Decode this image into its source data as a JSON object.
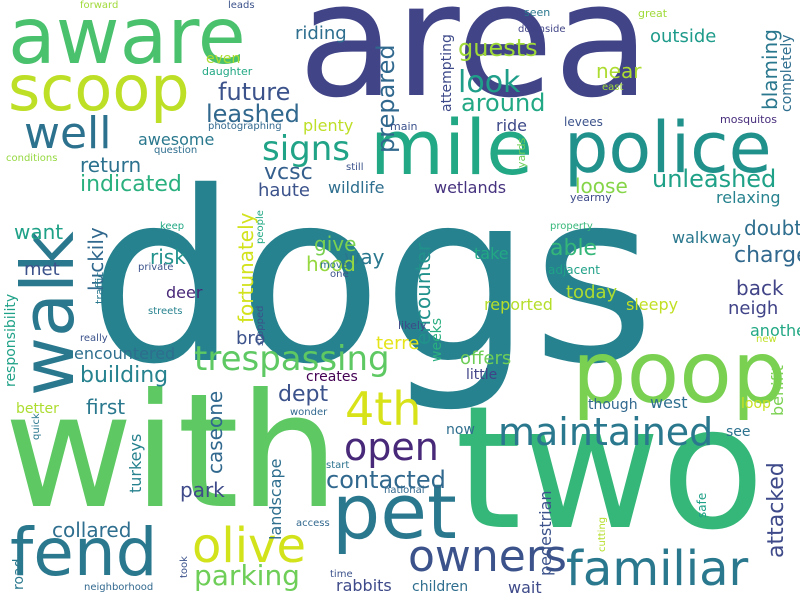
{
  "word_cloud": {
    "background": "#ffffff",
    "words": [
      {
        "text": "dogs",
        "color": "#26828e"
      },
      {
        "text": "area",
        "color": "#414487"
      },
      {
        "text": "two",
        "color": "#35b779"
      },
      {
        "text": "with",
        "color": "#5ec962"
      },
      {
        "text": "aware",
        "color": "#4ac16d"
      },
      {
        "text": "poop",
        "color": "#7ad151"
      },
      {
        "text": "police",
        "color": "#21918c"
      },
      {
        "text": "mile",
        "color": "#22a884"
      },
      {
        "text": "pet",
        "color": "#2a788e"
      },
      {
        "text": "scoop",
        "color": "#bddf26"
      },
      {
        "text": "walk",
        "color": "#2a788e"
      },
      {
        "text": "fend",
        "color": "#2a788e"
      },
      {
        "text": "familiar",
        "color": "#2a788e"
      },
      {
        "text": "owners",
        "color": "#3b528b"
      },
      {
        "text": "olive",
        "color": "#d2e21b"
      },
      {
        "text": "maintained",
        "color": "#2a788e"
      },
      {
        "text": "4th",
        "color": "#d8e219"
      },
      {
        "text": "well",
        "color": "#2c728e"
      },
      {
        "text": "open",
        "color": "#482878"
      },
      {
        "text": "trespassing",
        "color": "#5ec962"
      },
      {
        "text": "parking",
        "color": "#6ece58"
      },
      {
        "text": "signs",
        "color": "#20a386"
      },
      {
        "text": "look",
        "color": "#1f9e89"
      },
      {
        "text": "unleashed",
        "color": "#1fa187"
      },
      {
        "text": "contacted",
        "color": "#31688e"
      },
      {
        "text": "future",
        "color": "#3b528b"
      },
      {
        "text": "leashed",
        "color": "#31688e"
      },
      {
        "text": "prepared",
        "color": "#31688e"
      },
      {
        "text": "guests",
        "color": "#a0da39"
      },
      {
        "text": "around",
        "color": "#22a884"
      },
      {
        "text": "near",
        "color": "#addc30"
      },
      {
        "text": "outside",
        "color": "#1e9b8a"
      },
      {
        "text": "riding",
        "color": "#2e6e8e"
      },
      {
        "text": "blaming",
        "color": "#2a788e"
      },
      {
        "text": "indicated",
        "color": "#2ab07f"
      },
      {
        "text": "return",
        "color": "#2c728e"
      },
      {
        "text": "awesome",
        "color": "#2a788e"
      },
      {
        "text": "plenty",
        "color": "#bddf26"
      },
      {
        "text": "vcsc",
        "color": "#35608d"
      },
      {
        "text": "haute",
        "color": "#3b528b"
      },
      {
        "text": "wildlife",
        "color": "#2e6e8e"
      },
      {
        "text": "wetlands",
        "color": "#46327e"
      },
      {
        "text": "loose",
        "color": "#86d549"
      },
      {
        "text": "relaxing",
        "color": "#26828e"
      },
      {
        "text": "doubt",
        "color": "#2e6e8e"
      },
      {
        "text": "charged",
        "color": "#31688e"
      },
      {
        "text": "walkway",
        "color": "#2a788e"
      },
      {
        "text": "fortunately",
        "color": "#d2e21b"
      },
      {
        "text": "encounter",
        "color": "#21918c"
      },
      {
        "text": "luckily",
        "color": "#31688e"
      },
      {
        "text": "want",
        "color": "#1fa187"
      },
      {
        "text": "give",
        "color": "#7ad151"
      },
      {
        "text": "way",
        "color": "#2a788e"
      },
      {
        "text": "risk",
        "color": "#21918c"
      },
      {
        "text": "met",
        "color": "#3b528b"
      },
      {
        "text": "hood",
        "color": "#95d840"
      },
      {
        "text": "take",
        "color": "#22a884"
      },
      {
        "text": "able",
        "color": "#35b779"
      },
      {
        "text": "today",
        "color": "#addc30"
      },
      {
        "text": "back",
        "color": "#414487"
      },
      {
        "text": "neigh",
        "color": "#404387"
      },
      {
        "text": "another",
        "color": "#22a884"
      },
      {
        "text": "benifit",
        "color": "#7ad151"
      },
      {
        "text": "completely",
        "color": "#2e6e8e"
      },
      {
        "text": "loop",
        "color": "#c8e020"
      },
      {
        "text": "attacked",
        "color": "#3e4a89"
      },
      {
        "text": "deer",
        "color": "#482878"
      },
      {
        "text": "bro",
        "color": "#3b528b"
      },
      {
        "text": "caseone",
        "color": "#31688e"
      },
      {
        "text": "dept",
        "color": "#3b528b"
      },
      {
        "text": "building",
        "color": "#26828e"
      },
      {
        "text": "encountered",
        "color": "#2e6e8e"
      },
      {
        "text": "first",
        "color": "#2a788e"
      },
      {
        "text": "park",
        "color": "#3e4a89"
      },
      {
        "text": "collared",
        "color": "#2e6e8e"
      },
      {
        "text": "landscape",
        "color": "#2e6e8e"
      },
      {
        "text": "turkeys",
        "color": "#26828e"
      },
      {
        "text": "reported",
        "color": "#b5de2b"
      },
      {
        "text": "sleepy",
        "color": "#c2df23"
      },
      {
        "text": "creates",
        "color": "#440154"
      },
      {
        "text": "terre",
        "color": "#e5e419"
      },
      {
        "text": "offers",
        "color": "#6ece58"
      },
      {
        "text": "little",
        "color": "#404387"
      },
      {
        "text": "weeks",
        "color": "#29af7f"
      },
      {
        "text": "west",
        "color": "#2e6e8e"
      },
      {
        "text": "though",
        "color": "#31688e"
      },
      {
        "text": "see",
        "color": "#2c728e"
      },
      {
        "text": "now",
        "color": "#2e6e8e"
      },
      {
        "text": "wait",
        "color": "#3e4a89"
      },
      {
        "text": "children",
        "color": "#2e6e8e"
      },
      {
        "text": "rabbits",
        "color": "#3e4a89"
      },
      {
        "text": "pedestrian",
        "color": "#3b528b"
      },
      {
        "text": "responsibility",
        "color": "#1fa187"
      },
      {
        "text": "better",
        "color": "#addc30"
      },
      {
        "text": "road",
        "color": "#2a788e"
      },
      {
        "text": "even",
        "color": "#addc30"
      },
      {
        "text": "daughter",
        "color": "#22a884"
      },
      {
        "text": "photographing",
        "color": "#31688e"
      },
      {
        "text": "attempting",
        "color": "#3e4a89"
      },
      {
        "text": "ride",
        "color": "#3e4a89"
      },
      {
        "text": "levees",
        "color": "#3b528b"
      },
      {
        "text": "main",
        "color": "#3b528b"
      },
      {
        "text": "yards",
        "color": "#6ece58"
      },
      {
        "text": "still",
        "color": "#3b528b"
      },
      {
        "text": "yearmy",
        "color": "#3e4a89"
      },
      {
        "text": "mosquitos",
        "color": "#472d7b"
      },
      {
        "text": "east",
        "color": "#a0da39"
      },
      {
        "text": "seen",
        "color": "#2a788e"
      },
      {
        "text": "downside",
        "color": "#414487"
      },
      {
        "text": "great",
        "color": "#a0da39"
      },
      {
        "text": "forward",
        "color": "#a0da39"
      },
      {
        "text": "leads",
        "color": "#3b528b"
      },
      {
        "text": "question",
        "color": "#2e6e8e"
      },
      {
        "text": "conditions",
        "color": "#95d840"
      },
      {
        "text": "keep",
        "color": "#22a884"
      },
      {
        "text": "private",
        "color": "#3b528b"
      },
      {
        "text": "traffic",
        "color": "#2a788e"
      },
      {
        "text": "people",
        "color": "#22a884"
      },
      {
        "text": "move",
        "color": "#2e6e8e"
      },
      {
        "text": "one",
        "color": "#3b528b"
      },
      {
        "text": "property",
        "color": "#35b779"
      },
      {
        "text": "adjacent",
        "color": "#1fa187"
      },
      {
        "text": "streets",
        "color": "#26828e"
      },
      {
        "text": "really",
        "color": "#3b528b"
      },
      {
        "text": "stopped",
        "color": "#3b528b"
      },
      {
        "text": "likely",
        "color": "#3e4a89"
      },
      {
        "text": "new",
        "color": "#bddf26"
      },
      {
        "text": "wonder",
        "color": "#31688e"
      },
      {
        "text": "quick",
        "color": "#2a788e"
      },
      {
        "text": "start",
        "color": "#2c728e"
      },
      {
        "text": "national",
        "color": "#31688e"
      },
      {
        "text": "access",
        "color": "#31688e"
      },
      {
        "text": "took",
        "color": "#3b528b"
      },
      {
        "text": "time",
        "color": "#3b528b"
      },
      {
        "text": "neighborhood",
        "color": "#31688e"
      },
      {
        "text": "cutting",
        "color": "#b5de2b"
      },
      {
        "text": "safe",
        "color": "#1fa187"
      }
    ]
  }
}
